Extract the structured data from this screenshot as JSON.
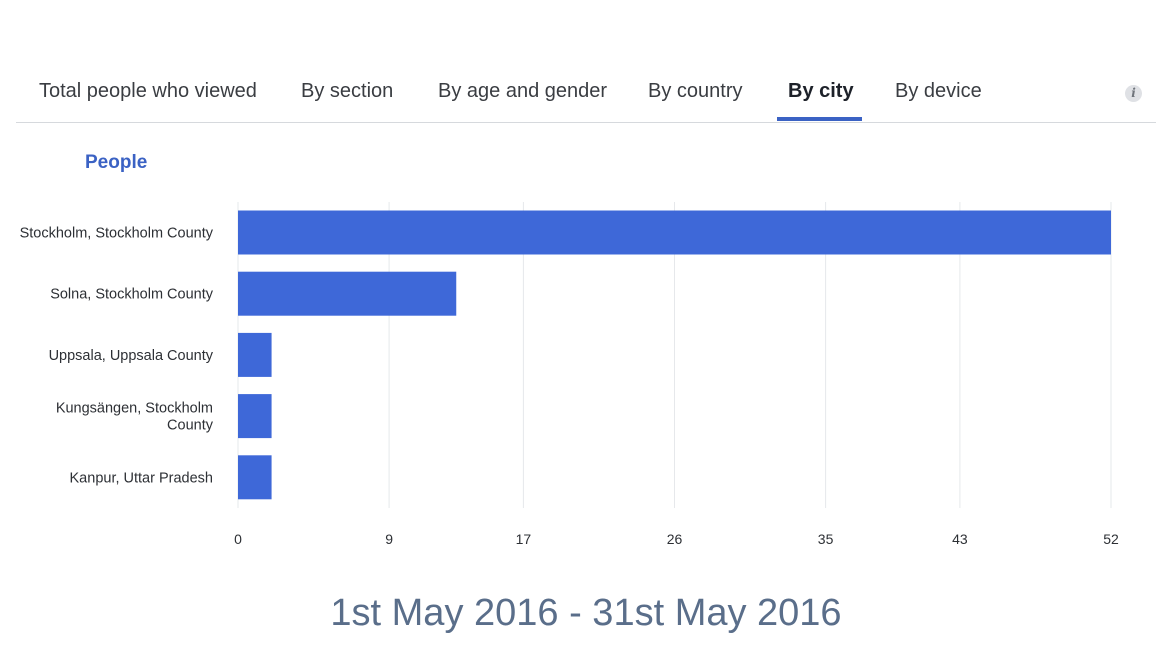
{
  "tabs": [
    {
      "label": "Total people who viewed",
      "active": false
    },
    {
      "label": "By section",
      "active": false
    },
    {
      "label": "By age and gender",
      "active": false
    },
    {
      "label": "By country",
      "active": false
    },
    {
      "label": "By city",
      "active": true
    },
    {
      "label": "By device",
      "active": false
    }
  ],
  "info_icon": "info-icon",
  "chart_data": {
    "type": "bar",
    "orientation": "horizontal",
    "title": "People",
    "categories": [
      "Stockholm, Stockholm County",
      "Solna, Stockholm County",
      "Uppsala, Uppsala County",
      "Kungsängen, Stockholm County",
      "Kanpur, Uttar Pradesh"
    ],
    "values": [
      52,
      13,
      2,
      2,
      2
    ],
    "xticks": [
      0,
      9,
      17,
      26,
      35,
      43,
      52
    ],
    "xlim": [
      0,
      52
    ],
    "grid": true,
    "bar_color": "#3e68d8"
  },
  "footer": {
    "date_range": "1st May 2016 - 31st May 2016"
  }
}
